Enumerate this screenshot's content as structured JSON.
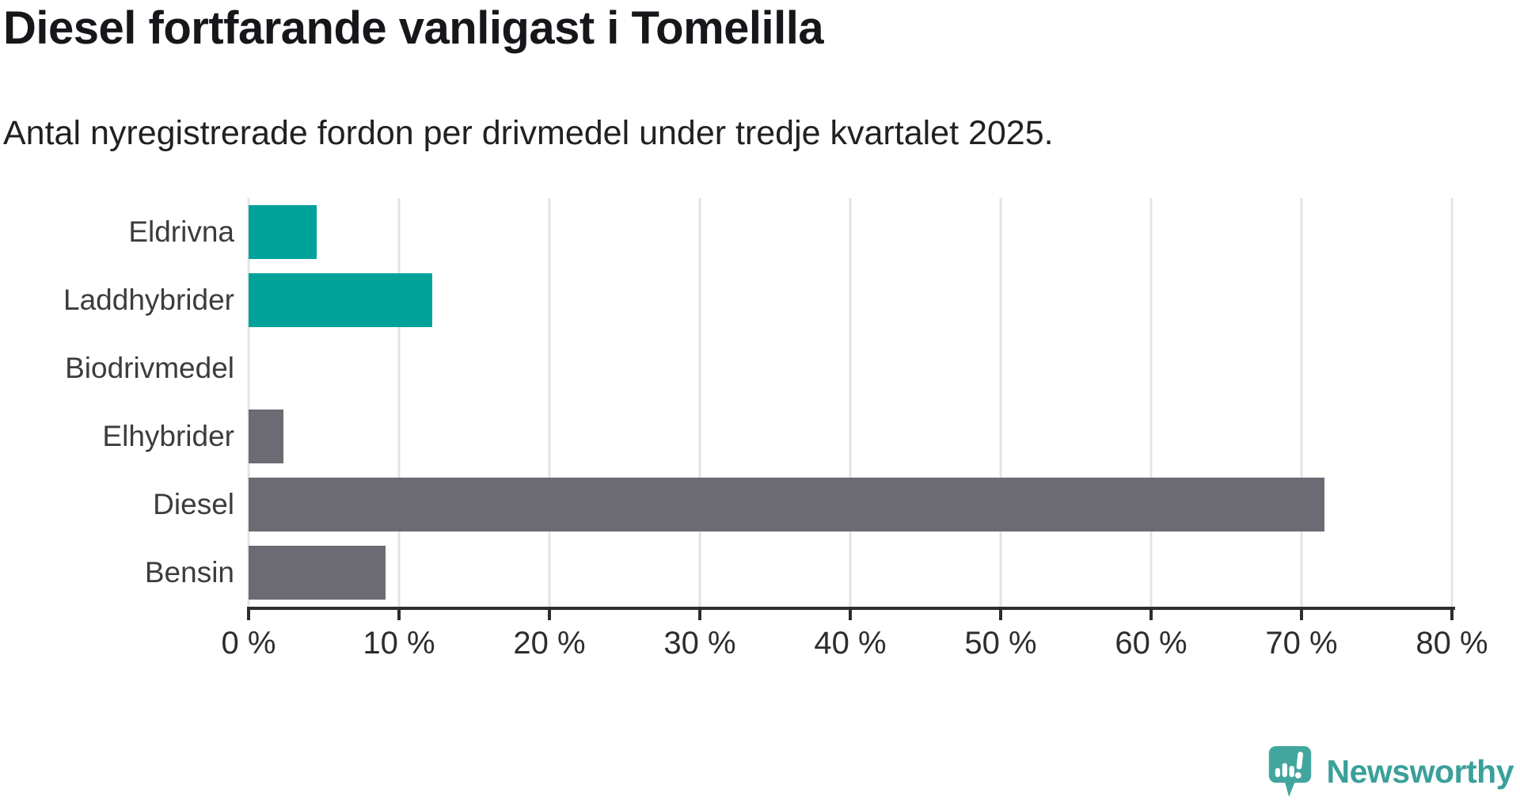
{
  "header": {
    "title": "Diesel fortfarande vanligast i Tomelilla",
    "subtitle": "Antal nyregistrerade fordon per drivmedel under tredje kvartalet 2025."
  },
  "chart_data": {
    "type": "bar",
    "orientation": "horizontal",
    "title": "Diesel fortfarande vanligast i Tomelilla",
    "subtitle": "Antal nyregistrerade fordon per drivmedel under tredje kvartalet 2025.",
    "categories": [
      "Eldrivna",
      "Laddhybrider",
      "Biodrivmedel",
      "Elhybrider",
      "Diesel",
      "Bensin"
    ],
    "values": [
      4.5,
      12.2,
      0,
      2.3,
      71.5,
      9.1
    ],
    "unit": "%",
    "bar_colors": [
      "#00a29a",
      "#00a29a",
      "#00a29a",
      "#6c6a72",
      "#6c6a72",
      "#6c6a72"
    ],
    "xlim": [
      0,
      80
    ],
    "x_ticks": [
      0,
      10,
      20,
      30,
      40,
      50,
      60,
      70,
      80
    ],
    "x_tick_labels": [
      "0 %",
      "10 %",
      "20 %",
      "30 %",
      "40 %",
      "50 %",
      "60 %",
      "70 %",
      "80 %"
    ],
    "grid": "vertical-gridlines",
    "legend": "none"
  },
  "footer": {
    "brand": "Newsworthy"
  },
  "colors": {
    "accent_teal": "#00a29a",
    "neutral_gray": "#6c6a72",
    "gridline": "#e3e3e3",
    "axis": "#2d2d2d",
    "brand_teal": "#3aa09a"
  }
}
